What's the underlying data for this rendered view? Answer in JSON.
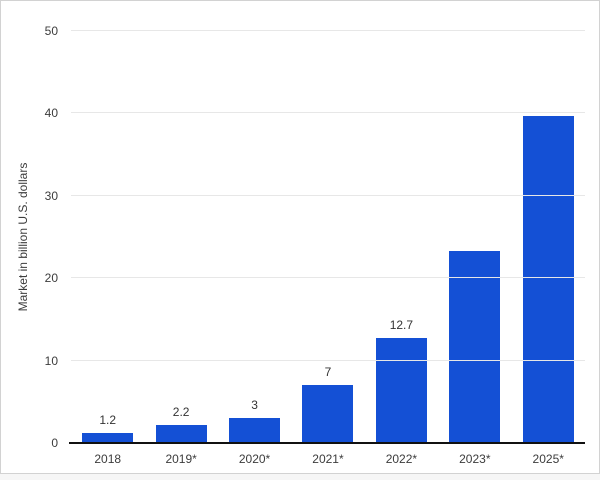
{
  "frame": {
    "background": "#ffffff",
    "border_color": "#d2d2d2",
    "outside_background": "#f6f6f6"
  },
  "chart_data": {
    "type": "bar",
    "title": "",
    "xlabel": "",
    "ylabel": "Market in billion U.S. dollars",
    "categories": [
      "2018",
      "2019*",
      "2020*",
      "2021*",
      "2022*",
      "2023*",
      "2025*"
    ],
    "values": [
      1.2,
      2.2,
      3,
      7,
      12.7,
      23.3,
      39.7
    ],
    "data_labels_shown": [
      "1.2",
      "2.2",
      "3",
      "7",
      "12.7",
      "",
      ""
    ],
    "yticks": [
      0,
      10,
      20,
      30,
      40,
      50
    ],
    "ylim": [
      0,
      50
    ],
    "grid": "horizontal-only",
    "legend": "none",
    "bar_color": "#1450d5",
    "gridline_color": "#e7e7e7",
    "axis_line_color": "#111111",
    "text_color": "#3c3c3c"
  }
}
